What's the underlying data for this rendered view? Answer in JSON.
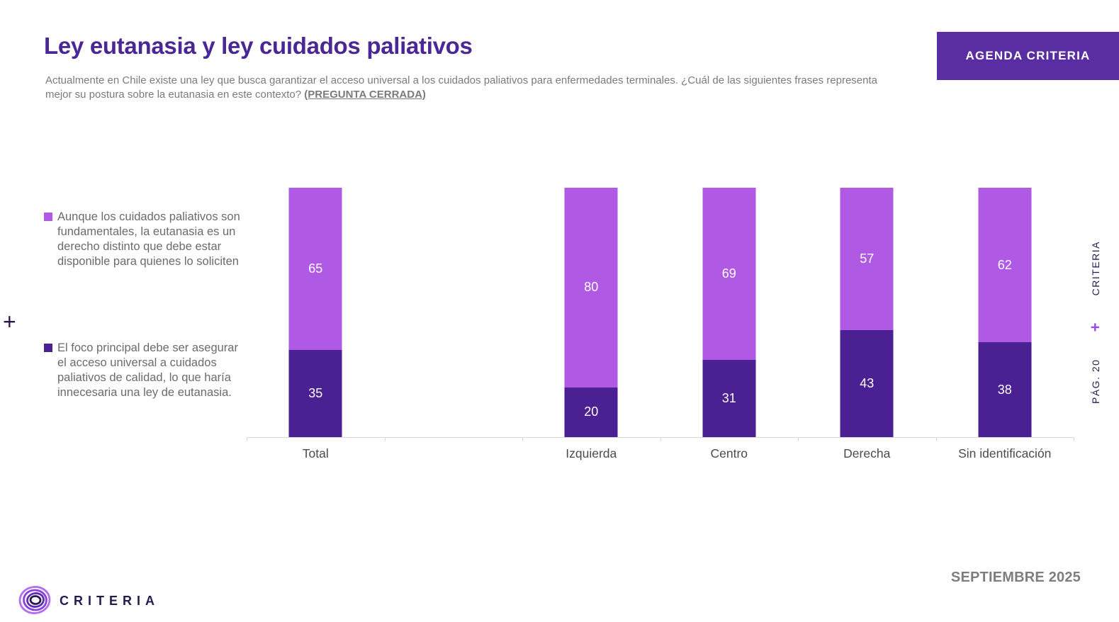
{
  "header": {
    "title": "Ley eutanasia y ley cuidados paliativos",
    "subtitle": "Actualmente en Chile existe una ley que busca garantizar el acceso universal a los cuidados paliativos para enfermedades terminales. ¿Cuál de las siguientes frases representa mejor su postura sobre la eutanasia en este contexto? ",
    "subtitle_emphasis": "(PREGUNTA CERRADA)",
    "badge_label": "AGENDA CRITERIA"
  },
  "chart_data": {
    "type": "bar",
    "stacked": true,
    "title": "Ley eutanasia y ley cuidados paliativos",
    "categories": [
      "Total",
      "Izquierda",
      "Centro",
      "Derecha",
      "Sin identificación"
    ],
    "series": [
      {
        "name": "Aunque los cuidados paliativos son fundamentales, la eutanasia es un derecho distinto que debe estar disponible para quienes lo soliciten",
        "color": "#b059e4",
        "values": [
          65,
          80,
          69,
          57,
          62
        ]
      },
      {
        "name": "El foco principal debe ser asegurar el acceso universal a cuidados paliativos de calidad, lo que haría innecesaria una ley de eutanasia.",
        "color": "#4a2092",
        "values": [
          35,
          20,
          31,
          43,
          38
        ]
      }
    ],
    "ylim": [
      0,
      100
    ],
    "value_labels": true,
    "legend_position": "left",
    "layout": {
      "empty_slot_after_category_index": 0,
      "slots_total": 6,
      "axis_color": "#d8d8d8",
      "grid": false
    }
  },
  "left_rail": {
    "plus": "+"
  },
  "side_rail": {
    "page_label": "PÁG. 20",
    "plus": "+",
    "brand": "CRITERIA"
  },
  "footer": {
    "brand": "CRITERIA",
    "date": "SEPTIEMBRE 2025"
  },
  "colors": {
    "title": "#4b2795",
    "badge_bg": "#5a2da3",
    "subtitle_text": "#7b7b7b",
    "legend_text": "#6b6b6b",
    "rail_text": "#241a4e",
    "rail_plus": "#9a4cf2"
  }
}
